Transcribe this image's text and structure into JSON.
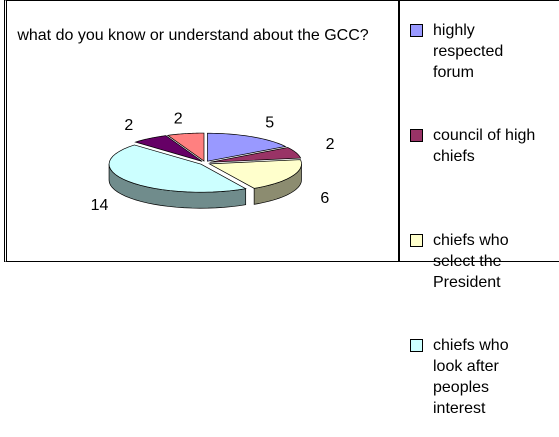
{
  "chart_data": {
    "type": "pie3d",
    "title": "what do you know or understand about the GCC?",
    "categories": [
      "highly respected forum",
      "council of high chiefs",
      "chiefs who select the President",
      "chiefs who look after peoples interest",
      null,
      null
    ],
    "values": [
      5,
      2,
      6,
      14,
      2,
      2
    ],
    "colors": [
      "#9999ff",
      "#993366",
      "#ffffcc",
      "#ccffff",
      "#660066",
      "#ff8080"
    ],
    "legend": "right"
  }
}
